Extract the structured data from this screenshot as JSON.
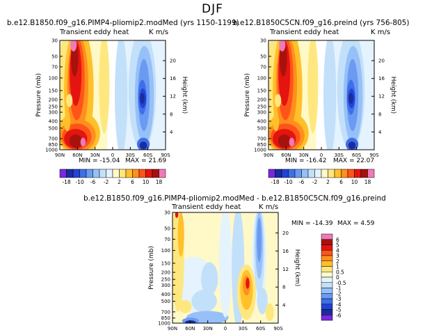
{
  "page": {
    "title": "DJF"
  },
  "chart_data": [
    {
      "id": "left",
      "type": "contour",
      "case_name": "b.e12.B1850.f09_g16.PIMP4-pliomip2.modMed (yrs 1150-1199)",
      "variable": "Transient eddy heat",
      "units": "K m/s",
      "min_label": "MIN = -15.04",
      "max_label": "MAX = 21.69",
      "ylabel": "Pressure (mb)",
      "y2label": "Height (km)",
      "x_ticks": [
        "90N",
        "60N",
        "30N",
        "0",
        "30S",
        "60S",
        "90S"
      ],
      "y_ticks": [
        "30",
        "50",
        "70",
        "100",
        "150",
        "200",
        "250",
        "300",
        "400",
        "500",
        "700",
        "850",
        "1000"
      ],
      "height_ticks": [
        "20",
        "16",
        "12",
        "8",
        "4"
      ],
      "colorbar_labels": [
        "-18",
        "-10",
        "-6",
        "-2",
        "2",
        "6",
        "10",
        "18"
      ]
    },
    {
      "id": "right",
      "type": "contour",
      "case_name": "b.e12.B1850C5CN.f09_g16.preind (yrs 756-805)",
      "variable": "Transient eddy heat",
      "units": "K m/s",
      "min_label": "MIN = -16.42",
      "max_label": "MAX = 22.07",
      "ylabel": "Pressure (mb)",
      "y2label": "Height (km)",
      "x_ticks": [
        "90N",
        "60N",
        "30N",
        "0",
        "30S",
        "60S",
        "90S"
      ],
      "y_ticks": [
        "30",
        "50",
        "70",
        "100",
        "150",
        "200",
        "250",
        "300",
        "400",
        "500",
        "700",
        "850",
        "1000"
      ],
      "height_ticks": [
        "20",
        "16",
        "12",
        "8",
        "4"
      ],
      "colorbar_labels": [
        "-18",
        "-10",
        "-6",
        "-2",
        "2",
        "6",
        "10",
        "18"
      ]
    },
    {
      "id": "diff",
      "type": "contour",
      "case_name": "b.e12.B1850.f09_g16.PIMP4-pliomip2.modMed - b.e12.B1850C5CN.f09_g16.preind",
      "variable": "Transient eddy heat",
      "units": "K m/s",
      "min_label": "MIN = -14.39",
      "max_label": "MAX = 4.59",
      "ylabel": "Pressure (mb)",
      "y2label": "Height (km)",
      "x_ticks": [
        "90N",
        "60N",
        "30N",
        "0",
        "30S",
        "60S",
        "90S"
      ],
      "y_ticks": [
        "30",
        "50",
        "70",
        "100",
        "150",
        "200",
        "250",
        "300",
        "400",
        "500",
        "700",
        "850",
        "1000"
      ],
      "height_ticks": [
        "20",
        "16",
        "12",
        "8",
        "4"
      ],
      "colorbar_labels": [
        "6",
        "5",
        "4",
        "3",
        "2",
        "1",
        "0.5",
        "0",
        "-0.5",
        "-1",
        "-2",
        "-3",
        "-4",
        "-5",
        "-6"
      ]
    }
  ],
  "colors": {
    "seq": [
      "#7a28e0",
      "#1c2c9e",
      "#2243d6",
      "#3f6fe8",
      "#6a9af2",
      "#96c0f7",
      "#c3e0fa",
      "#e4f3fd",
      "#fff9c8",
      "#ffe780",
      "#ffc02a",
      "#ff8f1f",
      "#ff5418",
      "#e41410",
      "#a8120c",
      "#f07ab8"
    ]
  }
}
